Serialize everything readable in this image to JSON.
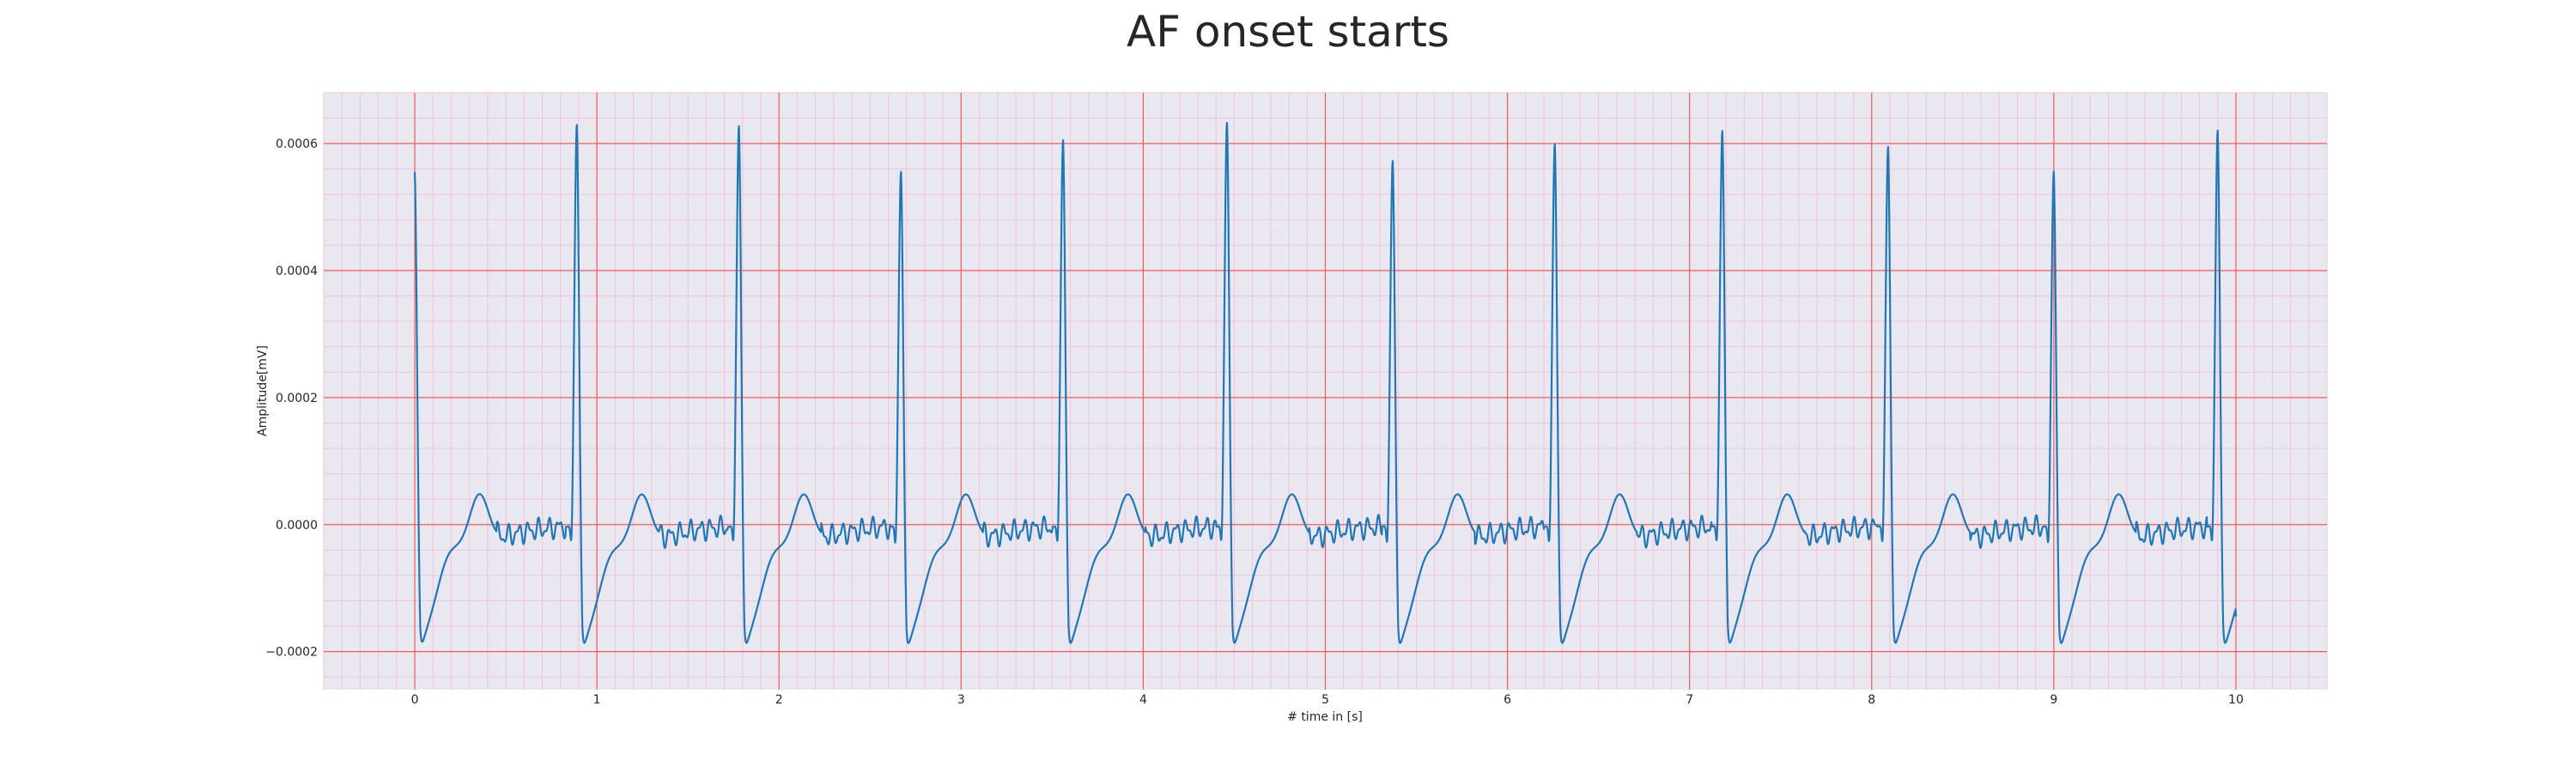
{
  "chart_data": {
    "type": "line",
    "title": "AF onset starts",
    "xlabel": "# time in [s]",
    "ylabel": "Amplitude[mV]",
    "xlim": [
      -0.5,
      10.5
    ],
    "ylim": [
      -0.00026,
      0.00068
    ],
    "x_ticks": [
      "0",
      "1",
      "2",
      "3",
      "4",
      "5",
      "6",
      "7",
      "8",
      "9",
      "10"
    ],
    "y_ticks": [
      "−0.0002",
      "0.0000",
      "0.0002",
      "0.0004",
      "0.0006"
    ],
    "y_tick_values": [
      -0.0002,
      0.0,
      0.0002,
      0.0004,
      0.0006
    ],
    "grid": "major and minor",
    "background_color": "#e9e8f1",
    "major_grid_color": "#f05a5a",
    "minor_grid_color": "#f3c2d4",
    "series": [
      {
        "color": "#1f77b4",
        "r_peak_times_s": [
          0.0,
          0.89,
          1.78,
          2.67,
          3.56,
          4.46,
          5.37,
          6.26,
          7.18,
          8.09,
          9.0,
          9.9
        ],
        "r_peak_amplitudes": [
          0.000555,
          0.000632,
          0.00063,
          0.000558,
          0.000608,
          0.000635,
          0.000575,
          0.000602,
          0.000622,
          0.000597,
          0.000558,
          0.000623
        ],
        "s_wave_minimum": -0.0002,
        "t_wave_peak": 6.8e-05,
        "end_time_s": 10.0,
        "end_amplitude": -0.000145
      }
    ]
  }
}
